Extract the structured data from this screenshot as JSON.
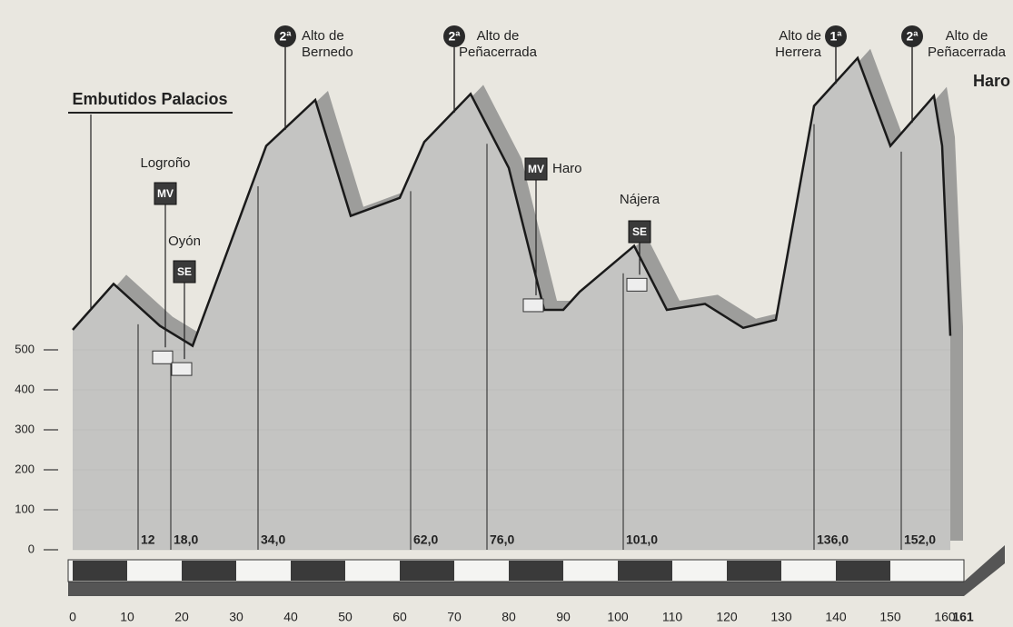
{
  "chart_data": {
    "type": "area",
    "sponsor": "Embutidos Palacios",
    "finish": "Haro",
    "x": [
      0,
      7.5,
      16,
      22,
      35.5,
      44.5,
      51,
      60,
      64.5,
      73,
      80,
      86.5,
      90,
      93,
      103,
      109,
      116,
      123,
      129,
      136,
      144,
      150,
      158,
      159.5,
      161
    ],
    "values": [
      550,
      665,
      560,
      510,
      1010,
      1125,
      835,
      880,
      1020,
      1140,
      955,
      600,
      600,
      645,
      760,
      600,
      615,
      555,
      575,
      1110,
      1230,
      1010,
      1135,
      1010,
      535
    ],
    "color": "#c4c4c2",
    "xlim": [
      0,
      161
    ],
    "ylim": [
      0,
      1350
    ],
    "xticks": [
      0,
      10,
      20,
      30,
      40,
      50,
      60,
      70,
      80,
      90,
      100,
      110,
      120,
      130,
      140,
      150,
      160,
      161
    ],
    "yticks": [
      0,
      100,
      200,
      300,
      400,
      500
    ],
    "km_marks": [
      12,
      {
        "value": 18,
        "label": "18,0"
      },
      {
        "value": 34,
        "label": "34,0"
      },
      {
        "value": 62,
        "label": "62,0"
      },
      {
        "value": 76,
        "label": "76,0"
      },
      {
        "value": 101,
        "label": "101,0"
      },
      {
        "value": 136,
        "label": "136,0"
      },
      {
        "value": 152,
        "label": "152,0"
      }
    ],
    "towns": [
      {
        "name": "Logroño",
        "code": "MV",
        "km": 17
      },
      {
        "name": "Oyón",
        "code": "SE",
        "km": 20.5
      },
      {
        "name": "Haro",
        "code": "MV",
        "km": 85
      },
      {
        "name": "Nájera",
        "code": "SE",
        "km": 104
      }
    ],
    "climbs": [
      {
        "category": "2ª",
        "name": [
          "Alto de",
          "Bernedo"
        ],
        "km": 39
      },
      {
        "category": "2ª",
        "name": [
          "Alto de",
          "Peñacerrada"
        ],
        "km": 70
      },
      {
        "category": "1ª",
        "name": [
          "Alto de",
          "Herrera"
        ],
        "km": 140
      },
      {
        "category": "2ª",
        "name": [
          "Alto de",
          "Peñacerrada"
        ],
        "km": 154
      }
    ]
  }
}
